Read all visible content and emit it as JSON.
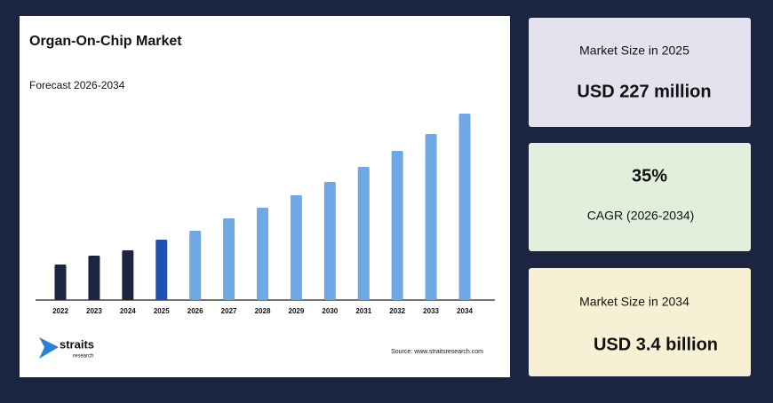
{
  "chart_data": {
    "type": "bar",
    "title": "Organ-On-Chip Market",
    "subtitle": "Forecast 2026-2034",
    "categories": [
      "2022",
      "2023",
      "2024",
      "2025",
      "2026",
      "2027",
      "2028",
      "2029",
      "2030",
      "2031",
      "2032",
      "2033",
      "2034"
    ],
    "values": [
      40,
      50,
      56,
      68,
      78,
      92,
      104,
      118,
      133,
      150,
      168,
      187,
      210
    ],
    "colors": [
      "#1b2540",
      "#1b2540",
      "#1b2540",
      "#1f4fb5",
      "#6ea9e6",
      "#6ea9e6",
      "#6ea9e6",
      "#6ea9e6",
      "#6ea9e6",
      "#6ea9e6",
      "#6ea9e6",
      "#6ea9e6",
      "#6ea9e6"
    ],
    "ylim": [
      0,
      220
    ]
  },
  "source": "Source: www.straitsresearch.com",
  "logo": {
    "name": "straits",
    "sub": "research"
  },
  "cards": [
    {
      "label": "Market Size in 2025",
      "value": "USD 227 million"
    },
    {
      "value": "35%",
      "label": "CAGR (2026-2034)"
    },
    {
      "label": "Market Size in 2034",
      "value": "USD 3.4 billion"
    }
  ]
}
